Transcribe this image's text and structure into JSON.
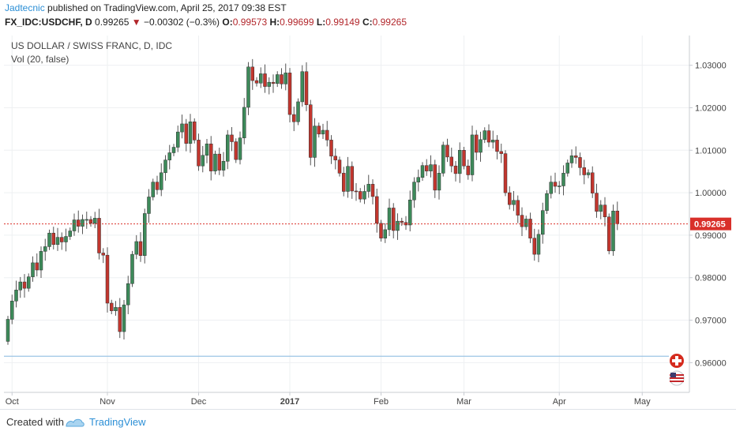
{
  "header": {
    "author": "Jadtecnic",
    "published_text": "published on TradingView.com, April 25, 2017 09:38 EST",
    "symbol": "FX_IDC:USDCHF, D",
    "last_price": "0.99265",
    "change": "−0.00302 (−0.3%)",
    "o_label": "O:",
    "o_value": "0.99573",
    "h_label": "H:",
    "h_value": "0.99699",
    "l_label": "L:",
    "l_value": "0.99149",
    "c_label": "C:",
    "c_value": "0.99265"
  },
  "legend": {
    "line1": "US DOLLAR / SWISS FRANC, D, IDC",
    "line2": "Vol (20, false)"
  },
  "footer": {
    "created_with": "Created with",
    "brand": "TradingView"
  },
  "colors": {
    "up": "#3d8a5a",
    "down": "#c2362e",
    "wick": "#555555",
    "grid": "#eef0f2",
    "price_line": "#d9302a",
    "hline": "#9cc4e4"
  },
  "chart_data": {
    "type": "candlestick",
    "symbol": "USDCHF",
    "y_range": [
      0.953,
      1.037
    ],
    "y_ticks": [
      0.96,
      0.97,
      0.98,
      0.99,
      1.0,
      1.01,
      1.02,
      1.03
    ],
    "y_tick_labels": [
      "0.96000",
      "0.97000",
      "0.98000",
      "0.99000",
      "1.00000",
      "1.01000",
      "1.02000",
      "1.03000"
    ],
    "x_labels": [
      {
        "label": "Oct",
        "index": 1,
        "bold": false
      },
      {
        "label": "Nov",
        "index": 24,
        "bold": false
      },
      {
        "label": "Dec",
        "index": 46,
        "bold": false
      },
      {
        "label": "2017",
        "index": 68,
        "bold": true
      },
      {
        "label": "Feb",
        "index": 90,
        "bold": false
      },
      {
        "label": "Mar",
        "index": 110,
        "bold": false
      },
      {
        "label": "Apr",
        "index": 133,
        "bold": false
      },
      {
        "label": "May",
        "index": 153,
        "bold": false
      }
    ],
    "current_price": 0.99265,
    "current_price_label": "0.99265",
    "horizontal_line": 0.9615,
    "closes": [
      0.9702,
      0.9745,
      0.9771,
      0.979,
      0.9775,
      0.9802,
      0.9835,
      0.9818,
      0.9862,
      0.9873,
      0.9905,
      0.9878,
      0.9895,
      0.9884,
      0.9897,
      0.991,
      0.9936,
      0.9921,
      0.9937,
      0.9937,
      0.9928,
      0.994,
      0.9858,
      0.9853,
      0.974,
      0.9722,
      0.973,
      0.9673,
      0.9736,
      0.9786,
      0.9855,
      0.9885,
      0.9852,
      0.9951,
      0.999,
      1.0025,
      1.0007,
      1.0047,
      1.0077,
      1.0094,
      1.0107,
      1.0143,
      1.0162,
      1.0116,
      1.0167,
      1.0124,
      1.0063,
      1.0088,
      1.0115,
      1.0051,
      1.0091,
      1.0053,
      1.0074,
      1.0136,
      1.012,
      1.0078,
      1.0129,
      1.0201,
      1.0296,
      1.0264,
      1.0258,
      1.028,
      1.025,
      1.026,
      1.0257,
      1.0278,
      1.0256,
      1.0282,
      1.0184,
      1.0167,
      1.0214,
      1.0285,
      1.0207,
      1.0083,
      1.0157,
      1.0138,
      1.0147,
      1.0124,
      1.0086,
      1.0077,
      1.0046,
      1.0003,
      1.0062,
      1.0004,
      1.0003,
      0.9985,
      1.0003,
      1.002,
      0.9991,
      0.9928,
      0.9893,
      0.9913,
      0.9964,
      0.9911,
      0.9933,
      0.993,
      0.9924,
      0.9983,
      1.0025,
      1.0036,
      1.0064,
      1.0051,
      1.0066,
      1.0006,
      1.0046,
      1.0112,
      1.0084,
      1.0063,
      1.0045,
      1.01,
      1.0063,
      1.0042,
      1.0136,
      1.0095,
      1.0125,
      1.0146,
      1.0119,
      1.0124,
      1.0097,
      1.0092,
      1.0,
      0.9972,
      0.9982,
      0.9947,
      0.992,
      0.9938,
      0.9893,
      0.9855,
      0.9902,
      0.9958,
      0.9998,
      1.0025,
      1.0015,
      1.0016,
      1.0046,
      1.007,
      1.0087,
      1.0083,
      1.0059,
      1.0042,
      1.0047,
      0.9999,
      0.9956,
      0.9971,
      0.9943,
      0.9863,
      0.9957,
      0.9927
    ]
  }
}
